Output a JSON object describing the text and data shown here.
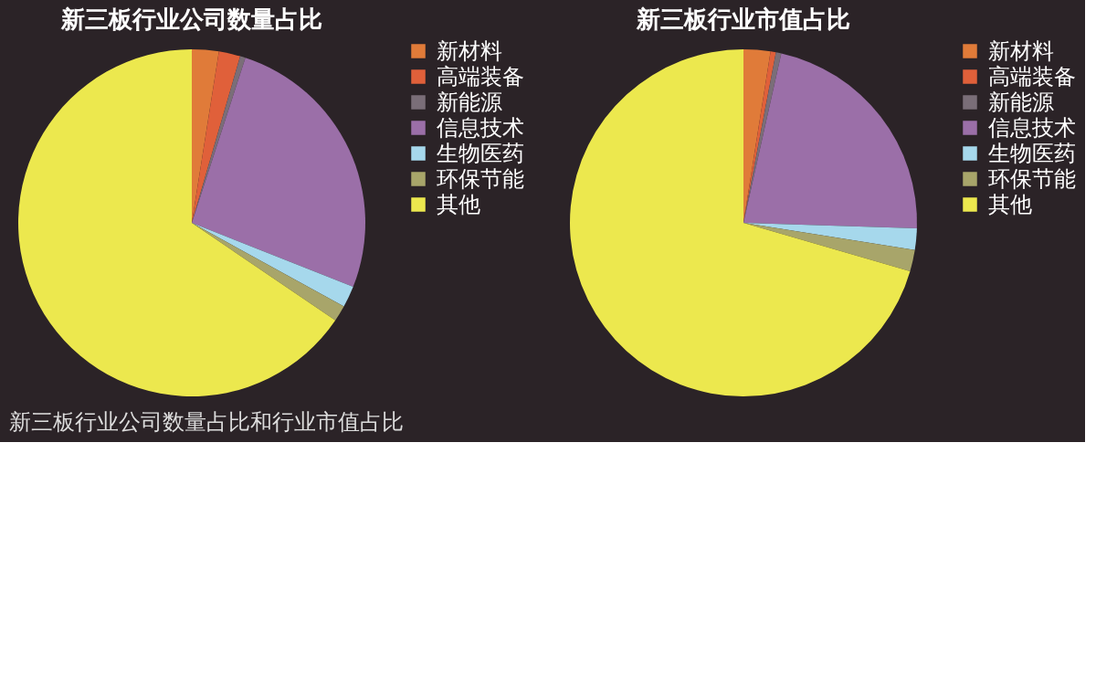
{
  "chart_data": [
    {
      "type": "pie",
      "title": "新三板行业公司数量占比",
      "categories": [
        "新材料",
        "高端装备",
        "新能源",
        "信息技术",
        "生物医药",
        "环保节能",
        "其他"
      ],
      "values": [
        2.5,
        2,
        0.5,
        26,
        2,
        1.5,
        65.5
      ],
      "colors": [
        "#e07b39",
        "#e0603a",
        "#7a6e78",
        "#9b6fa8",
        "#a6d8ec",
        "#a8a56a",
        "#ece84e"
      ],
      "legend": "right",
      "annotations": [
        "新三板行业公司数量占比和行业市值占比"
      ]
    },
    {
      "type": "pie",
      "title": "新三板行业市值占比",
      "categories": [
        "新材料",
        "高端装备",
        "新能源",
        "信息技术",
        "生物医药",
        "环保节能",
        "其他"
      ],
      "values": [
        2.5,
        0.5,
        0.5,
        22,
        2,
        2,
        70.5
      ],
      "colors": [
        "#e07b39",
        "#e0603a",
        "#7a6e78",
        "#9b6fa8",
        "#a6d8ec",
        "#a8a56a",
        "#ece84e"
      ],
      "legend": "right"
    }
  ]
}
